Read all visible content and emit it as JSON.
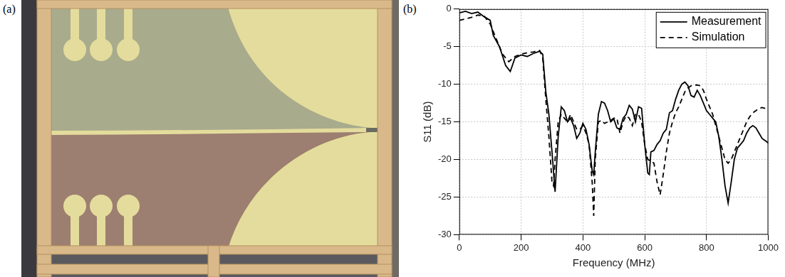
{
  "panel_labels": [
    "(a)",
    "(b)"
  ],
  "chart_data": {
    "type": "line",
    "x_label": "Frequency (MHz)",
    "y_label": "S11 (dB)",
    "xlim": [
      0,
      1000
    ],
    "xticks": [
      0,
      200,
      400,
      600,
      800,
      1000
    ],
    "ylim": [
      -30,
      0
    ],
    "yticks": [
      -30,
      -25,
      -20,
      -15,
      -10,
      -5,
      0
    ],
    "grid": true,
    "legend": "upper right",
    "series": [
      {
        "name": "Measurement",
        "color": "#000000",
        "line_style": "solid",
        "x": [
          0,
          20,
          40,
          60,
          80,
          100,
          110,
          130,
          150,
          165,
          180,
          200,
          220,
          240,
          260,
          270,
          280,
          290,
          300,
          310,
          320,
          330,
          340,
          350,
          360,
          370,
          380,
          390,
          400,
          410,
          420,
          430,
          435,
          440,
          450,
          460,
          470,
          480,
          490,
          500,
          510,
          520,
          530,
          540,
          550,
          560,
          570,
          580,
          590,
          600,
          610,
          615,
          620,
          630,
          640,
          650,
          660,
          670,
          680,
          690,
          700,
          710,
          720,
          730,
          740,
          750,
          760,
          770,
          780,
          790,
          800,
          810,
          820,
          830,
          840,
          850,
          860,
          870,
          880,
          890,
          900,
          910,
          920,
          930,
          940,
          950,
          960,
          970,
          980,
          990,
          1000
        ],
        "values": [
          -0.5,
          -0.3,
          -0.6,
          -0.4,
          -1.0,
          -1.5,
          -3.5,
          -5,
          -7.5,
          -8.3,
          -6.5,
          -6.1,
          -6.3,
          -5.9,
          -5.6,
          -6,
          -11,
          -14,
          -19,
          -24.3,
          -17,
          -13,
          -13.5,
          -15,
          -14.5,
          -15.5,
          -17.2,
          -16.5,
          -15.2,
          -16,
          -18,
          -21.5,
          -22,
          -19,
          -14,
          -12.3,
          -12.5,
          -13.5,
          -15,
          -14.6,
          -15.8,
          -16,
          -14.5,
          -14,
          -12.8,
          -13.3,
          -15,
          -13,
          -13.2,
          -18,
          -21.8,
          -22,
          -19,
          -18.8,
          -18,
          -17.5,
          -16.5,
          -16,
          -13.8,
          -13.5,
          -12,
          -10.8,
          -10,
          -9.7,
          -10.2,
          -11.5,
          -11.7,
          -10.8,
          -11.5,
          -12.5,
          -13.5,
          -14,
          -14.5,
          -15,
          -17,
          -20,
          -23.5,
          -25.8,
          -23,
          -20,
          -18.5,
          -18,
          -17.5,
          -16.5,
          -15.8,
          -15.5,
          -15.8,
          -16.5,
          -17.2,
          -17.5,
          -17.8
        ]
      },
      {
        "name": "Simulation",
        "color": "#000000",
        "line_style": "dashed",
        "x": [
          0,
          20,
          40,
          60,
          80,
          100,
          120,
          140,
          160,
          180,
          200,
          220,
          240,
          260,
          270,
          280,
          290,
          300,
          305,
          310,
          320,
          330,
          340,
          350,
          360,
          370,
          380,
          390,
          400,
          410,
          420,
          430,
          435,
          440,
          450,
          460,
          470,
          480,
          490,
          500,
          510,
          520,
          530,
          540,
          550,
          560,
          570,
          580,
          590,
          600,
          610,
          620,
          630,
          640,
          650,
          660,
          670,
          680,
          690,
          700,
          710,
          720,
          730,
          740,
          750,
          760,
          770,
          780,
          790,
          800,
          810,
          820,
          830,
          840,
          850,
          860,
          870,
          880,
          890,
          900,
          910,
          920,
          930,
          940,
          950,
          960,
          970,
          980,
          990,
          1000
        ],
        "values": [
          -1.5,
          -1.3,
          -1.1,
          -0.8,
          -0.9,
          -2,
          -4,
          -6,
          -7,
          -6.3,
          -6,
          -5.8,
          -5.7,
          -5.5,
          -6.5,
          -12,
          -17,
          -23,
          -23.5,
          -20,
          -15,
          -14,
          -14.5,
          -15,
          -14,
          -15,
          -16,
          -16,
          -15.5,
          -16.5,
          -18,
          -23,
          -27.5,
          -20,
          -15,
          -14.8,
          -15.2,
          -15,
          -14.8,
          -14.5,
          -14.5,
          -16.5,
          -15,
          -14.2,
          -14.5,
          -15.5,
          -14,
          -14,
          -15,
          -18,
          -20,
          -20.2,
          -20.5,
          -23,
          -24.7,
          -22,
          -19,
          -16.5,
          -15,
          -13.8,
          -13,
          -12,
          -11,
          -10.5,
          -10.2,
          -10.1,
          -10.1,
          -10.2,
          -10.8,
          -12,
          -13,
          -14,
          -15.5,
          -17,
          -18.5,
          -20,
          -20.5,
          -20,
          -19,
          -18,
          -17,
          -16,
          -15,
          -14.3,
          -13.8,
          -13.5,
          -13.2,
          -13.1,
          -13.2,
          -13.2
        ]
      }
    ]
  }
}
